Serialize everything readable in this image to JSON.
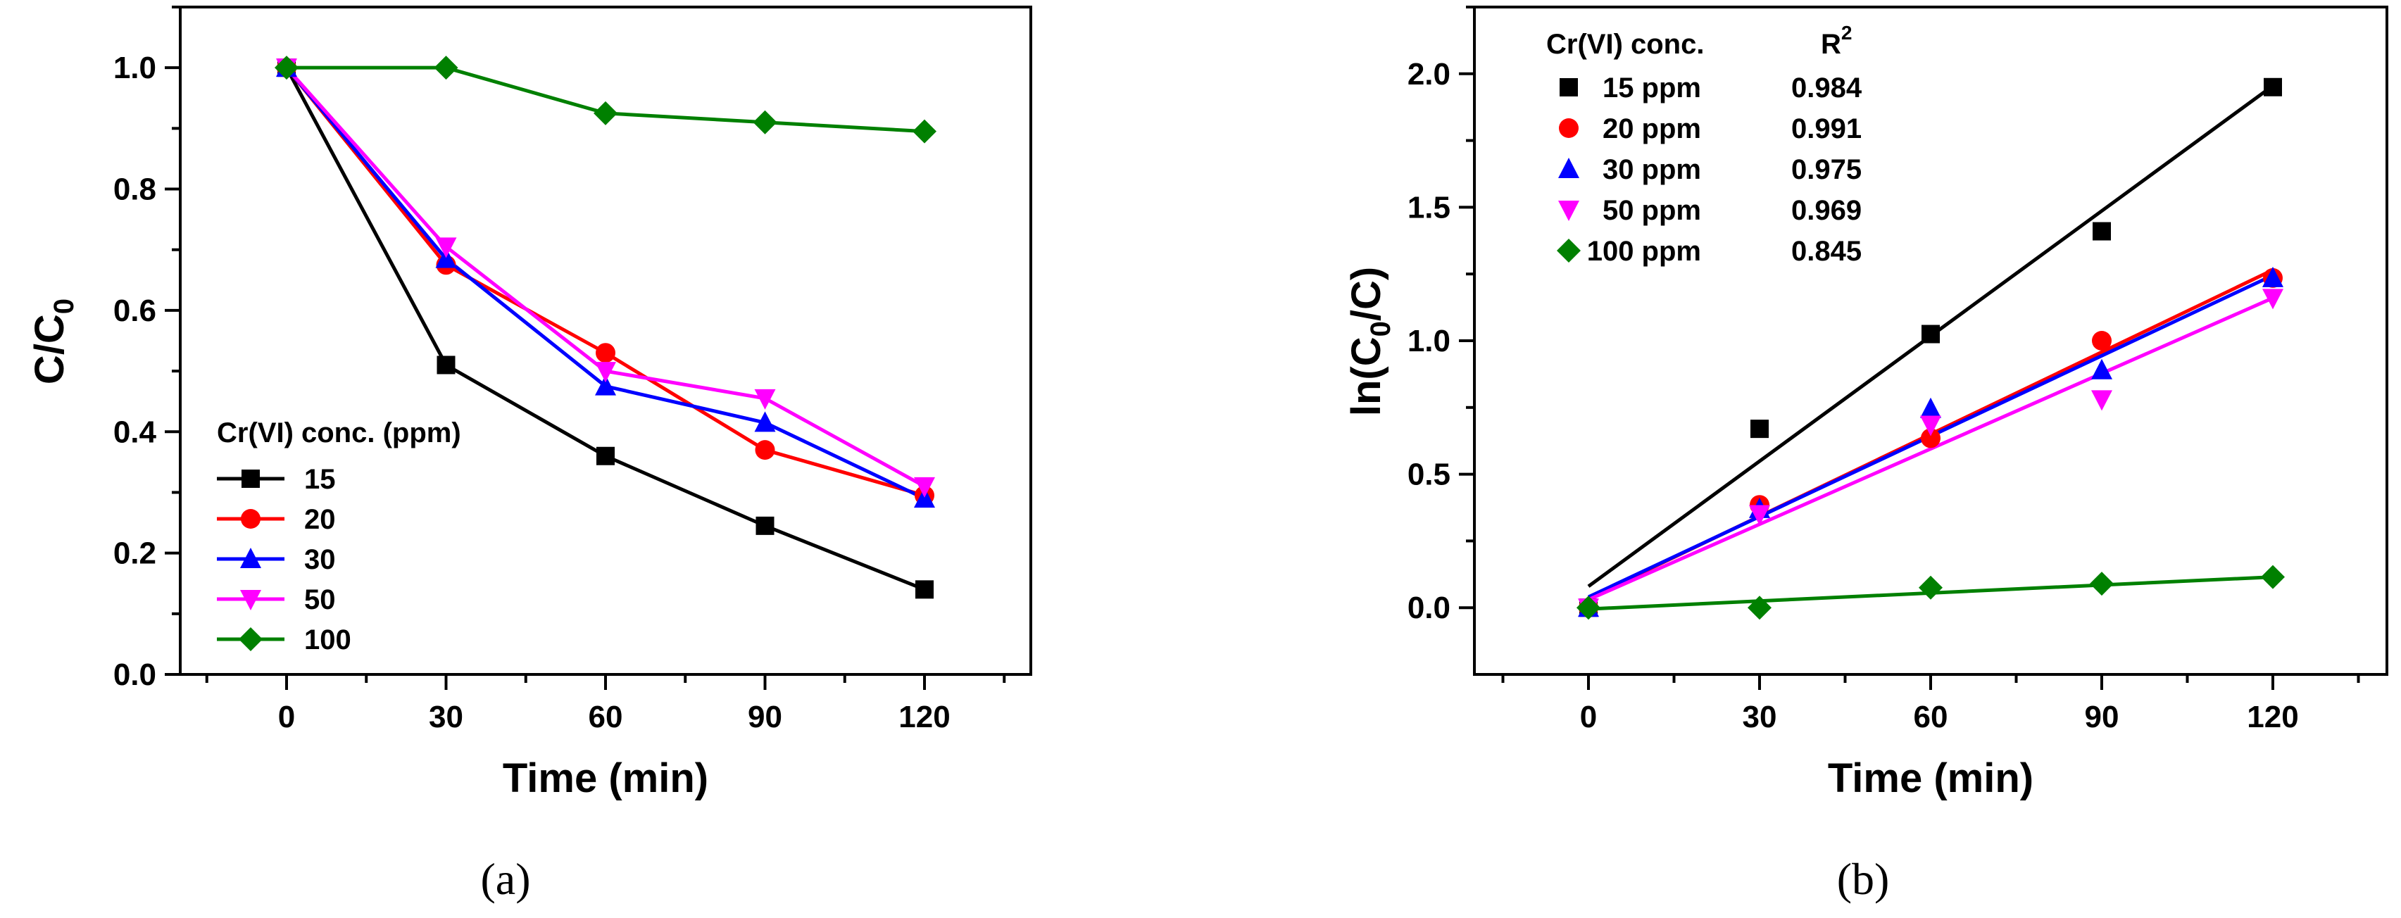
{
  "chart_data": [
    {
      "id": "a",
      "type": "line",
      "caption": "(a)",
      "xlabel": "Time (min)",
      "ylabel": "C/C0",
      "ylabel_main": "C/C",
      "ylabel_sub": "0",
      "xlim": [
        -20,
        140
      ],
      "ylim": [
        0.0,
        1.1
      ],
      "xticks": [
        0,
        30,
        60,
        90,
        120
      ],
      "yticks": [
        0.0,
        0.2,
        0.4,
        0.6,
        0.8,
        1.0
      ],
      "xtick_labels": [
        "0",
        "30",
        "60",
        "90",
        "120"
      ],
      "ytick_labels": [
        "0.0",
        "0.2",
        "0.4",
        "0.6",
        "0.8",
        "1.0"
      ],
      "legend_title": "Cr(VI) conc. (ppm)",
      "legend_position": "bottom-left",
      "x": [
        0,
        30,
        60,
        90,
        120
      ],
      "series": [
        {
          "name": "15",
          "values": [
            1.0,
            0.51,
            0.36,
            0.245,
            0.14
          ]
        },
        {
          "name": "20",
          "values": [
            1.0,
            0.675,
            0.53,
            0.37,
            0.295
          ]
        },
        {
          "name": "30",
          "values": [
            1.0,
            0.685,
            0.475,
            0.415,
            0.29
          ]
        },
        {
          "name": "50",
          "values": [
            1.0,
            0.705,
            0.5,
            0.455,
            0.31
          ]
        },
        {
          "name": "100",
          "values": [
            1.0,
            1.0,
            0.925,
            0.91,
            0.895
          ]
        }
      ]
    },
    {
      "id": "b",
      "type": "scatter",
      "caption": "(b)",
      "xlabel": "Time (min)",
      "ylabel": "ln(C0/C)",
      "ylabel_pre": "ln(C",
      "ylabel_sub": "0",
      "ylabel_post": "/C)",
      "xlim": [
        -20,
        140
      ],
      "ylim": [
        -0.25,
        2.25
      ],
      "xticks": [
        0,
        30,
        60,
        90,
        120
      ],
      "yticks": [
        0.0,
        0.5,
        1.0,
        1.5,
        2.0
      ],
      "xtick_labels": [
        "0",
        "30",
        "60",
        "90",
        "120"
      ],
      "ytick_labels": [
        "0.0",
        "0.5",
        "1.0",
        "1.5",
        "2.0"
      ],
      "legend_header_conc": "Cr(VI) conc.",
      "legend_header_r2": "R",
      "legend_header_r2_sup": "2",
      "legend_position": "top-left",
      "x": [
        0,
        30,
        60,
        90,
        120
      ],
      "series": [
        {
          "name": "15 ppm",
          "r2": "0.984",
          "values": [
            0.0,
            0.67,
            1.025,
            1.41,
            1.95
          ],
          "fit": [
            0.08,
            1.955
          ]
        },
        {
          "name": "20 ppm",
          "r2": "0.991",
          "values": [
            0.0,
            0.385,
            0.635,
            1.0,
            1.235
          ],
          "fit": [
            0.035,
            1.265
          ]
        },
        {
          "name": "30 ppm",
          "r2": "0.975",
          "values": [
            0.0,
            0.37,
            0.745,
            0.89,
            1.235
          ],
          "fit": [
            0.04,
            1.245
          ]
        },
        {
          "name": "50 ppm",
          "r2": "0.969",
          "values": [
            0.0,
            0.35,
            0.685,
            0.78,
            1.16
          ],
          "fit": [
            0.03,
            1.16
          ]
        },
        {
          "name": "100 ppm",
          "r2": "0.845",
          "values": [
            0.0,
            0.0,
            0.075,
            0.09,
            0.115
          ],
          "fit": [
            -0.005,
            0.115
          ]
        }
      ]
    }
  ],
  "colors": {
    "15": "#000000",
    "20": "#ff0000",
    "30": "#0000ff",
    "50": "#ff00ff",
    "100": "#008000"
  },
  "markers": [
    "square",
    "circle",
    "triangle-up",
    "triangle-down",
    "diamond"
  ]
}
